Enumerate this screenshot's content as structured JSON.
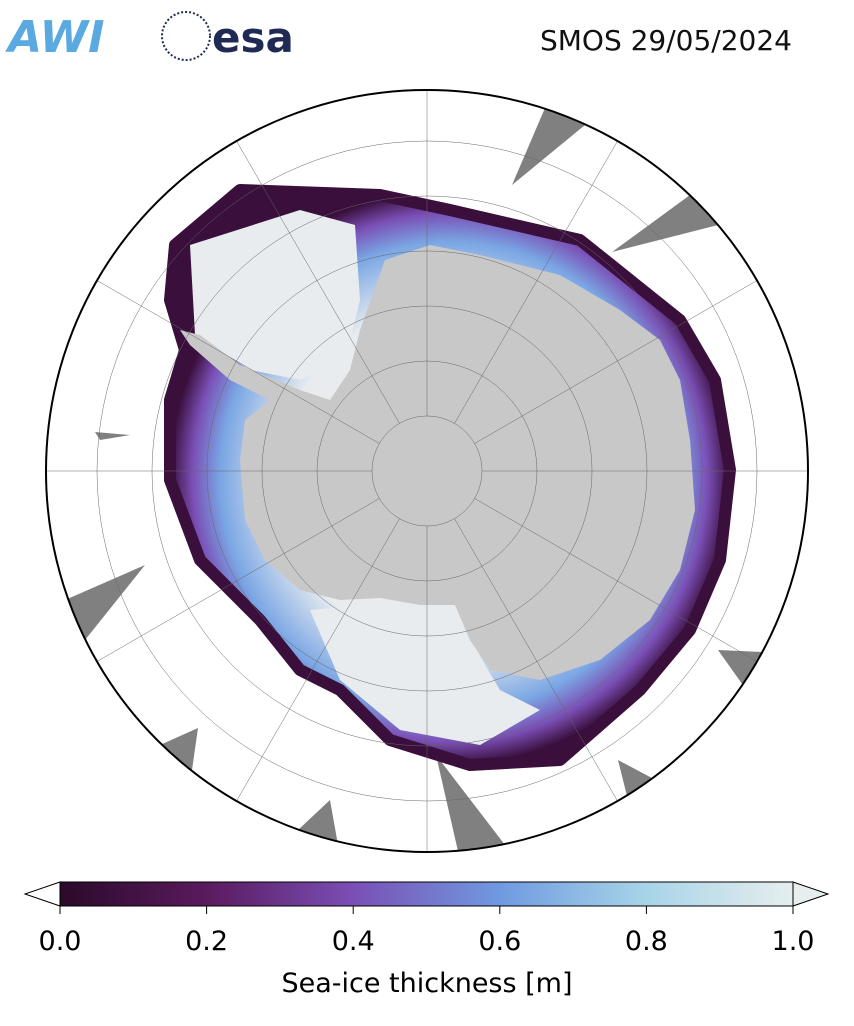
{
  "header": {
    "logos": [
      "AWI",
      "esa"
    ],
    "title": "SMOS 29/05/2024"
  },
  "colorbar": {
    "label": "Sea-ice thickness [m]",
    "range": [
      0,
      1
    ],
    "ticks": [
      {
        "value": 0,
        "label": "0.0"
      },
      {
        "value": 0.2,
        "label": "0.2"
      },
      {
        "value": 0.4,
        "label": "0.4"
      },
      {
        "value": 0.6,
        "label": "0.6"
      },
      {
        "value": 0.8,
        "label": "0.8"
      },
      {
        "value": 1,
        "label": "1.0"
      }
    ],
    "colors": [
      "#2a0a2a",
      "#5a1a5e",
      "#7a4fb5",
      "#6f9ae0",
      "#a8d4e8",
      "#e6eeee"
    ]
  }
}
